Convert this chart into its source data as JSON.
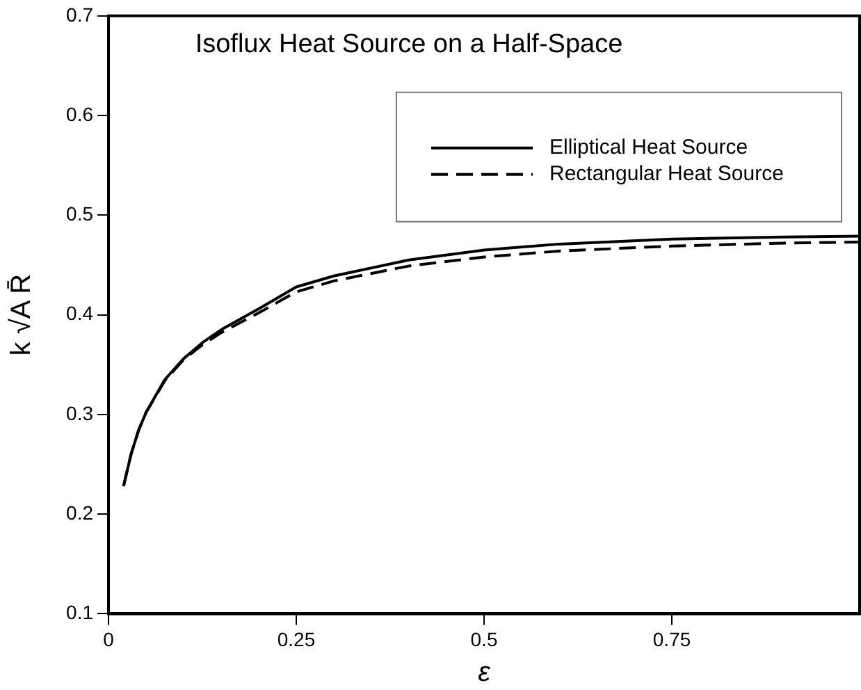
{
  "chart_data": {
    "type": "line",
    "title": "Isoflux Heat Source on a Half-Space",
    "xlabel": "ε",
    "ylabel": "k √A R̄",
    "xlim": [
      0,
      1
    ],
    "xticks": [
      0,
      0.25,
      0.5,
      0.75
    ],
    "ylim": [
      0.1,
      0.7
    ],
    "yticks": [
      0.1,
      0.2,
      0.3,
      0.4,
      0.5,
      0.6,
      0.7
    ],
    "grid": false,
    "legend": "top right",
    "marker": "none",
    "series": [
      {
        "name": "Elliptical Heat Source",
        "color": "#000000",
        "line_style": "solid",
        "x": [
          0.02,
          0.03,
          0.04,
          0.05,
          0.075,
          0.1,
          0.125,
          0.15,
          0.2,
          0.25,
          0.3,
          0.4,
          0.5,
          0.6,
          0.75,
          0.9,
          1.0
        ],
        "values": [
          0.228,
          0.26,
          0.284,
          0.302,
          0.335,
          0.356,
          0.372,
          0.385,
          0.406,
          0.428,
          0.439,
          0.455,
          0.465,
          0.471,
          0.476,
          0.478,
          0.479
        ]
      },
      {
        "name": "Rectangular Heat Source",
        "color": "#000000",
        "line_style": "dashed",
        "x": [
          0.02,
          0.03,
          0.04,
          0.05,
          0.075,
          0.1,
          0.125,
          0.15,
          0.2,
          0.25,
          0.3,
          0.4,
          0.5,
          0.6,
          0.75,
          0.9,
          1.0
        ],
        "values": [
          0.228,
          0.26,
          0.284,
          0.302,
          0.334,
          0.355,
          0.37,
          0.382,
          0.402,
          0.423,
          0.434,
          0.449,
          0.458,
          0.464,
          0.469,
          0.472,
          0.473
        ]
      }
    ]
  }
}
